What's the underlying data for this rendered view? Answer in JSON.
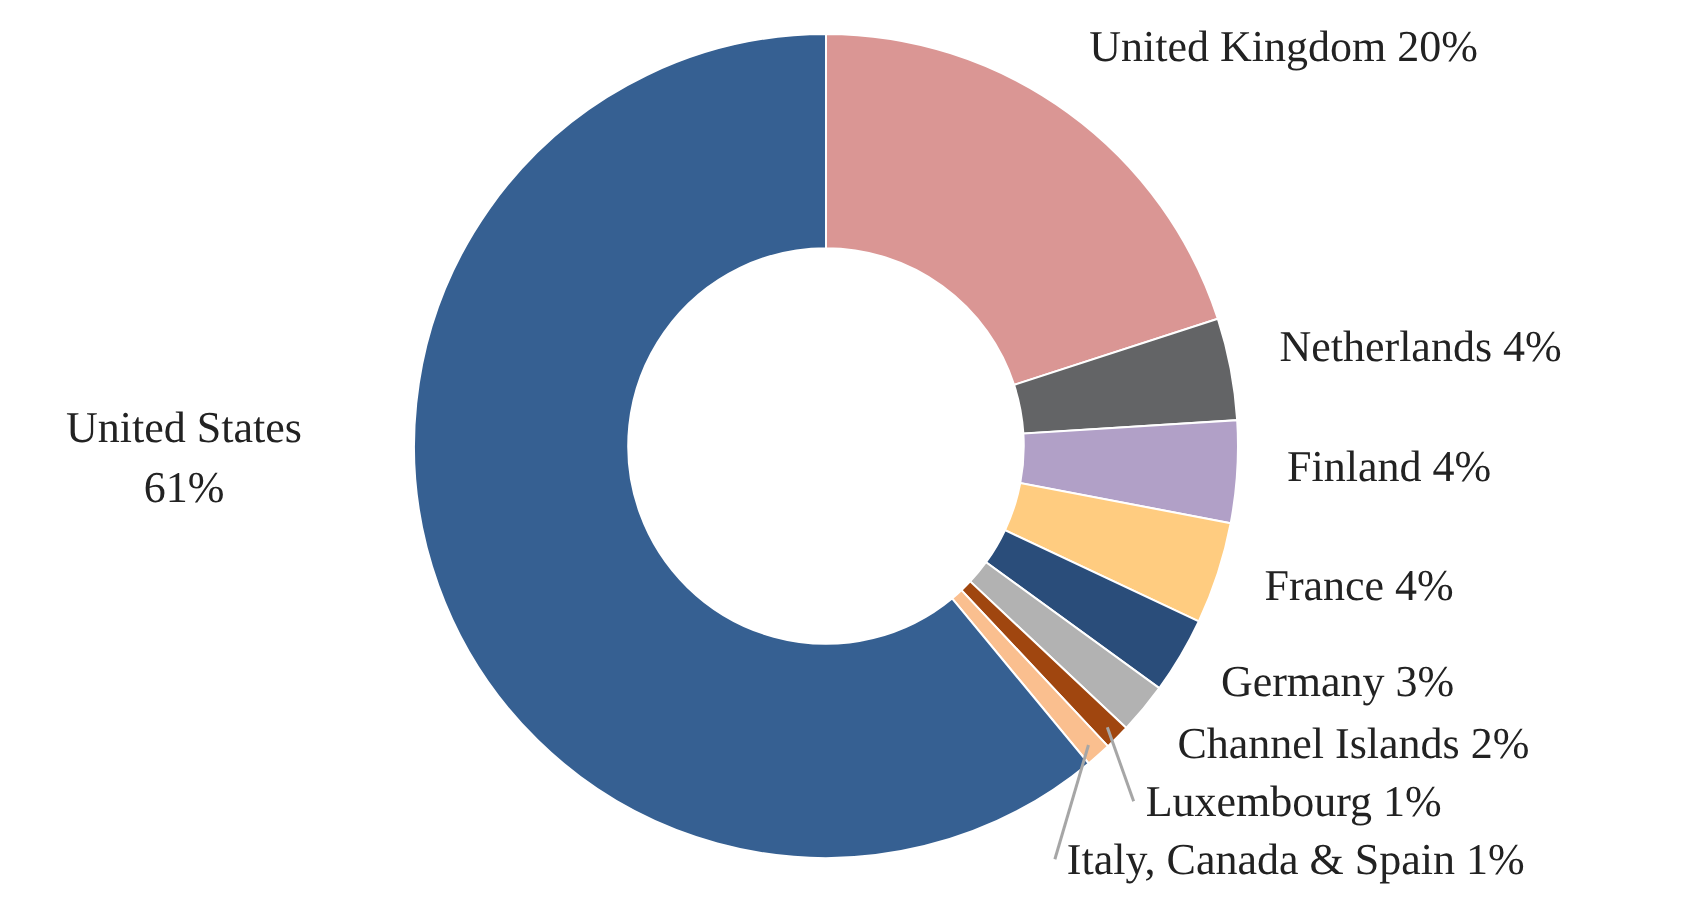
{
  "chart_data": {
    "type": "donut",
    "categories": [
      "United Kingdom",
      "Netherlands",
      "Finland",
      "France",
      "Germany",
      "Channel Islands",
      "Luxembourg",
      "Italy, Canada & Spain",
      "United States"
    ],
    "values": [
      20,
      4,
      4,
      4,
      3,
      2,
      1,
      1,
      61
    ],
    "value_labels": [
      "20%",
      "4%",
      "4%",
      "4%",
      "3%",
      "2%",
      "1%",
      "1%",
      "61%"
    ],
    "colors": [
      "#da9694",
      "#636466",
      "#b1a0c7",
      "#ffcc80",
      "#2a4d7a",
      "#b2b2b2",
      "#a0460f",
      "#fabf8f",
      "#366092"
    ]
  }
}
